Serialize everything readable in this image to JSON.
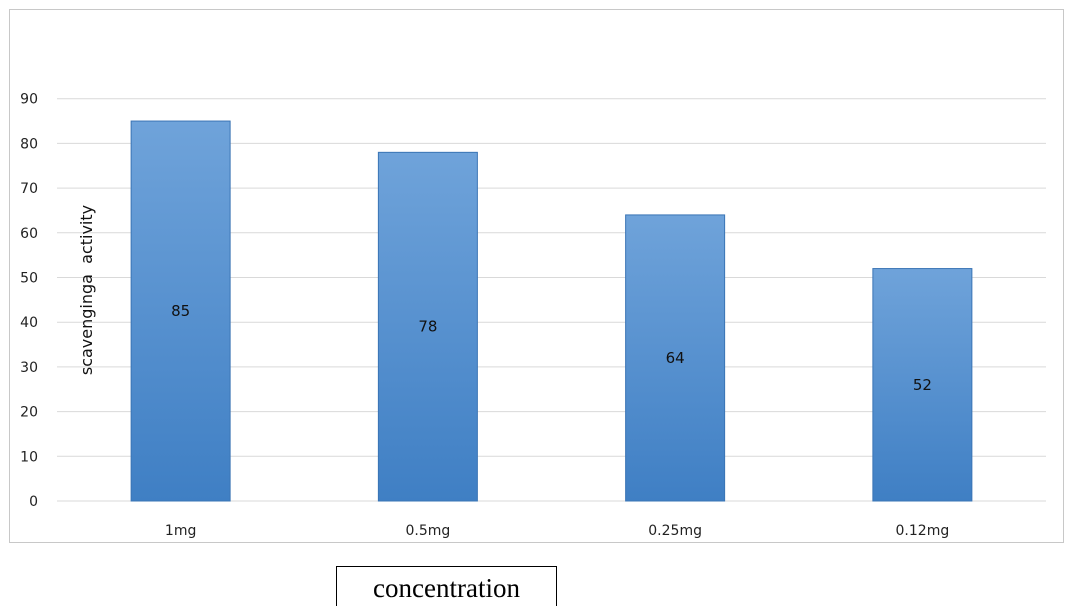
{
  "chart_data": {
    "type": "bar",
    "categories": [
      "1mg",
      "0.5mg",
      "0.25mg",
      "0.12mg"
    ],
    "values": [
      85,
      78,
      64,
      52
    ],
    "data_labels": [
      "85",
      "78",
      "64",
      "52"
    ],
    "yticks": [
      0,
      10,
      20,
      30,
      40,
      50,
      60,
      70,
      80,
      90
    ],
    "ylim": [
      0,
      100
    ],
    "ylabel": "scavenginga  activity",
    "xlabel": "concentration",
    "title": "",
    "grid": true,
    "legend": "none",
    "bar_color": "#4a86c8",
    "bar_color_light": "#6a9fd8",
    "grid_color": "#d9d9d9"
  }
}
